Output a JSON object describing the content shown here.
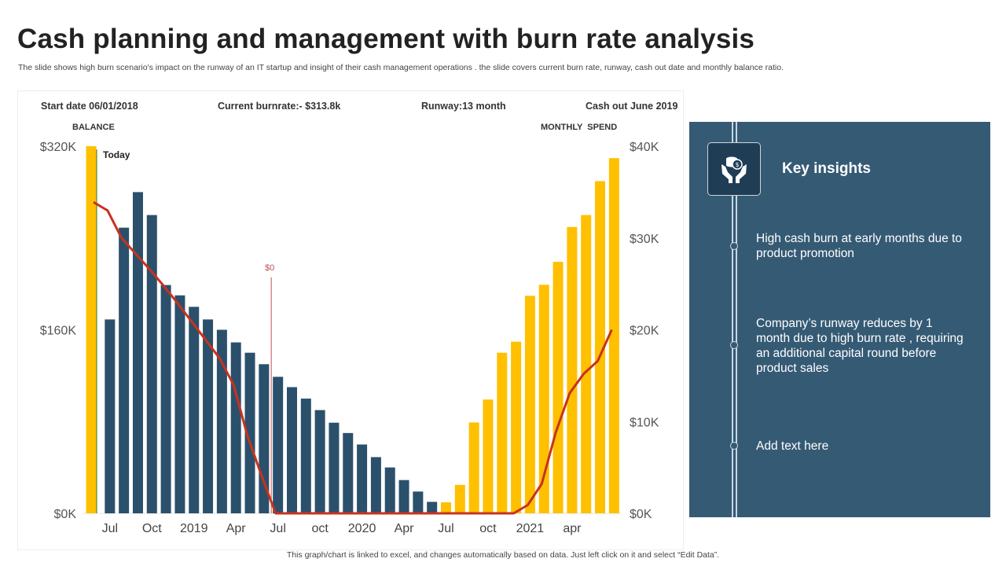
{
  "title": "Cash planning and management with burn rate analysis",
  "subtitle": "The slide shows high burn scenario's impact on the runway of an IT startup and insight of their cash management operations . the slide covers current burn rate, runway, cash out date and monthly balance ratio.",
  "stats": {
    "start_date": "Start date 06/01/2018",
    "burnrate": "Current burnrate:- $313.8k",
    "runway": "Runway:13 month",
    "cash_out": "Cash out June 2019"
  },
  "chart_data": {
    "type": "bar+line",
    "left_axis": {
      "title": "BALANCE",
      "ticks": [
        "$320K",
        "$160K",
        "$0K"
      ],
      "range": [
        0,
        320
      ],
      "unit": "K"
    },
    "right_axis": {
      "title": "MONTHLY  SPEND",
      "ticks": [
        "$40K",
        "$30K",
        "$20K",
        "$10K",
        "$0K"
      ],
      "range": [
        0,
        40
      ],
      "unit": "K"
    },
    "x_tick_labels": [
      "Jul",
      "Oct",
      "2019",
      "Apr",
      "Jul",
      "oct",
      "2020",
      "Apr",
      "Jul",
      "oct",
      "2021",
      "apr"
    ],
    "x_tick_every": 3,
    "x_tick_start_index": 1,
    "colors": {
      "balance_bar": "#2b506c",
      "spend_bar": "#ffc000",
      "line": "#c8321e",
      "today_line": "#2e7d32",
      "zero_marker": "#c0504d"
    },
    "balance_bars": {
      "axis": "left",
      "first_index": 1,
      "values": [
        169,
        249,
        280,
        260,
        199,
        190,
        180,
        169,
        160,
        149,
        140,
        130,
        119,
        110,
        100,
        90,
        79,
        70,
        60,
        49,
        40,
        29,
        19,
        10
      ]
    },
    "spend_bars": [
      {
        "axis": "left",
        "first_index": 0,
        "values": [
          320
        ]
      },
      {
        "axis": "right",
        "first_index": 25,
        "values": [
          1.2,
          3.1,
          9.9,
          12.4,
          17.5,
          18.7,
          23.7,
          24.9,
          27.4,
          31.2,
          32.5,
          36.2,
          38.7
        ]
      }
    ],
    "line": {
      "axis": "right",
      "values": [
        33.9,
        33.0,
        30.0,
        28.3,
        26.6,
        24.8,
        22.9,
        20.9,
        18.9,
        16.9,
        14.0,
        8.4,
        4.1,
        0,
        0,
        0,
        0,
        0,
        0,
        0,
        0,
        0,
        0,
        0,
        0,
        0,
        0,
        0,
        0,
        0,
        0,
        0.9,
        3.2,
        8.8,
        13.1,
        15.2,
        16.6,
        20.0
      ]
    },
    "annotations": {
      "today": "Today",
      "zero": "$0",
      "zero_index": 13
    },
    "bar_count": 38
  },
  "insights": {
    "heading": "Key insights",
    "icon": "hands-holding-coins-icon",
    "items": [
      "High cash burn at early months due to product promotion",
      "Company’s runway  reduces by 1 month due to high burn rate , requiring an additional capital round before product sales",
      "Add text here"
    ]
  },
  "footer": "This graph/chart is linked to excel,  and changes automatically based on data. Just left click on it and select “Edit Data”."
}
